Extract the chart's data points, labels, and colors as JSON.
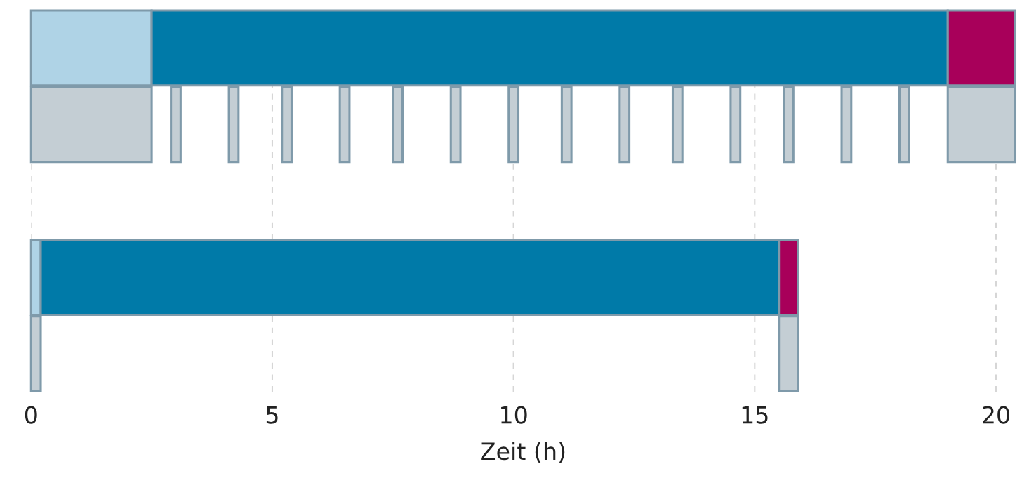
{
  "chart_data": {
    "type": "bar",
    "orientation": "horizontal",
    "xlabel": "Zeit (h)",
    "categories": [
      null,
      null,
      null,
      null,
      null
    ],
    "xlim": [
      0,
      20.4
    ],
    "xticks": [
      0,
      5,
      10,
      15,
      20
    ],
    "tick_labels": "x",
    "grid": "x",
    "series": [
      {
        "color": "#afd3e6",
        "base": [
          0,
          null,
          null,
          0,
          null
        ],
        "values": [
          2.5,
          null,
          null,
          0.2,
          null
        ]
      },
      {
        "color": "#007aa8",
        "base": [
          2.5,
          null,
          null,
          0.2,
          null
        ],
        "values": [
          16.5,
          null,
          null,
          15.3,
          null
        ]
      },
      {
        "color": "#a8005a",
        "base": [
          19.0,
          null,
          null,
          15.5,
          null
        ],
        "values": [
          1.4,
          null,
          null,
          0.4,
          null
        ]
      },
      {
        "color": "#c4ced4",
        "base": [
          null,
          0,
          null,
          null,
          0
        ],
        "values": [
          null,
          2.5,
          null,
          null,
          0.2
        ]
      },
      {
        "color": "#c4ced4",
        "base": [
          null,
          19.0,
          null,
          null,
          15.5
        ],
        "values": [
          null,
          1.4,
          null,
          null,
          0.4
        ]
      },
      {
        "color": "#c4ced4",
        "base": [
          null,
          2.9,
          null,
          null,
          null
        ],
        "values": [
          null,
          0.2,
          null,
          null,
          null
        ]
      },
      {
        "color": "#c4ced4",
        "base": [
          null,
          4.1,
          null,
          null,
          null
        ],
        "values": [
          null,
          0.2,
          null,
          null,
          null
        ]
      },
      {
        "color": "#c4ced4",
        "base": [
          null,
          5.2,
          null,
          null,
          null
        ],
        "values": [
          null,
          0.2,
          null,
          null,
          null
        ]
      },
      {
        "color": "#c4ced4",
        "base": [
          null,
          6.4,
          null,
          null,
          null
        ],
        "values": [
          null,
          0.2,
          null,
          null,
          null
        ]
      },
      {
        "color": "#c4ced4",
        "base": [
          null,
          7.5,
          null,
          null,
          null
        ],
        "values": [
          null,
          0.2,
          null,
          null,
          null
        ]
      },
      {
        "color": "#c4ced4",
        "base": [
          null,
          8.7,
          null,
          null,
          null
        ],
        "values": [
          null,
          0.2,
          null,
          null,
          null
        ]
      },
      {
        "color": "#c4ced4",
        "base": [
          null,
          9.9,
          null,
          null,
          null
        ],
        "values": [
          null,
          0.2,
          null,
          null,
          null
        ]
      },
      {
        "color": "#c4ced4",
        "base": [
          null,
          11.0,
          null,
          null,
          null
        ],
        "values": [
          null,
          0.2,
          null,
          null,
          null
        ]
      },
      {
        "color": "#c4ced4",
        "base": [
          null,
          12.2,
          null,
          null,
          null
        ],
        "values": [
          null,
          0.2,
          null,
          null,
          null
        ]
      },
      {
        "color": "#c4ced4",
        "base": [
          null,
          13.3,
          null,
          null,
          null
        ],
        "values": [
          null,
          0.2,
          null,
          null,
          null
        ]
      },
      {
        "color": "#c4ced4",
        "base": [
          null,
          14.5,
          null,
          null,
          null
        ],
        "values": [
          null,
          0.2,
          null,
          null,
          null
        ]
      },
      {
        "color": "#c4ced4",
        "base": [
          null,
          15.6,
          null,
          null,
          null
        ],
        "values": [
          null,
          0.2,
          null,
          null,
          null
        ]
      },
      {
        "color": "#c4ced4",
        "base": [
          null,
          16.8,
          null,
          null,
          null
        ],
        "values": [
          null,
          0.2,
          null,
          null,
          null
        ]
      },
      {
        "color": "#c4ced4",
        "base": [
          null,
          18.0,
          null,
          null,
          null
        ],
        "values": [
          null,
          0.2,
          null,
          null,
          null
        ]
      }
    ]
  }
}
